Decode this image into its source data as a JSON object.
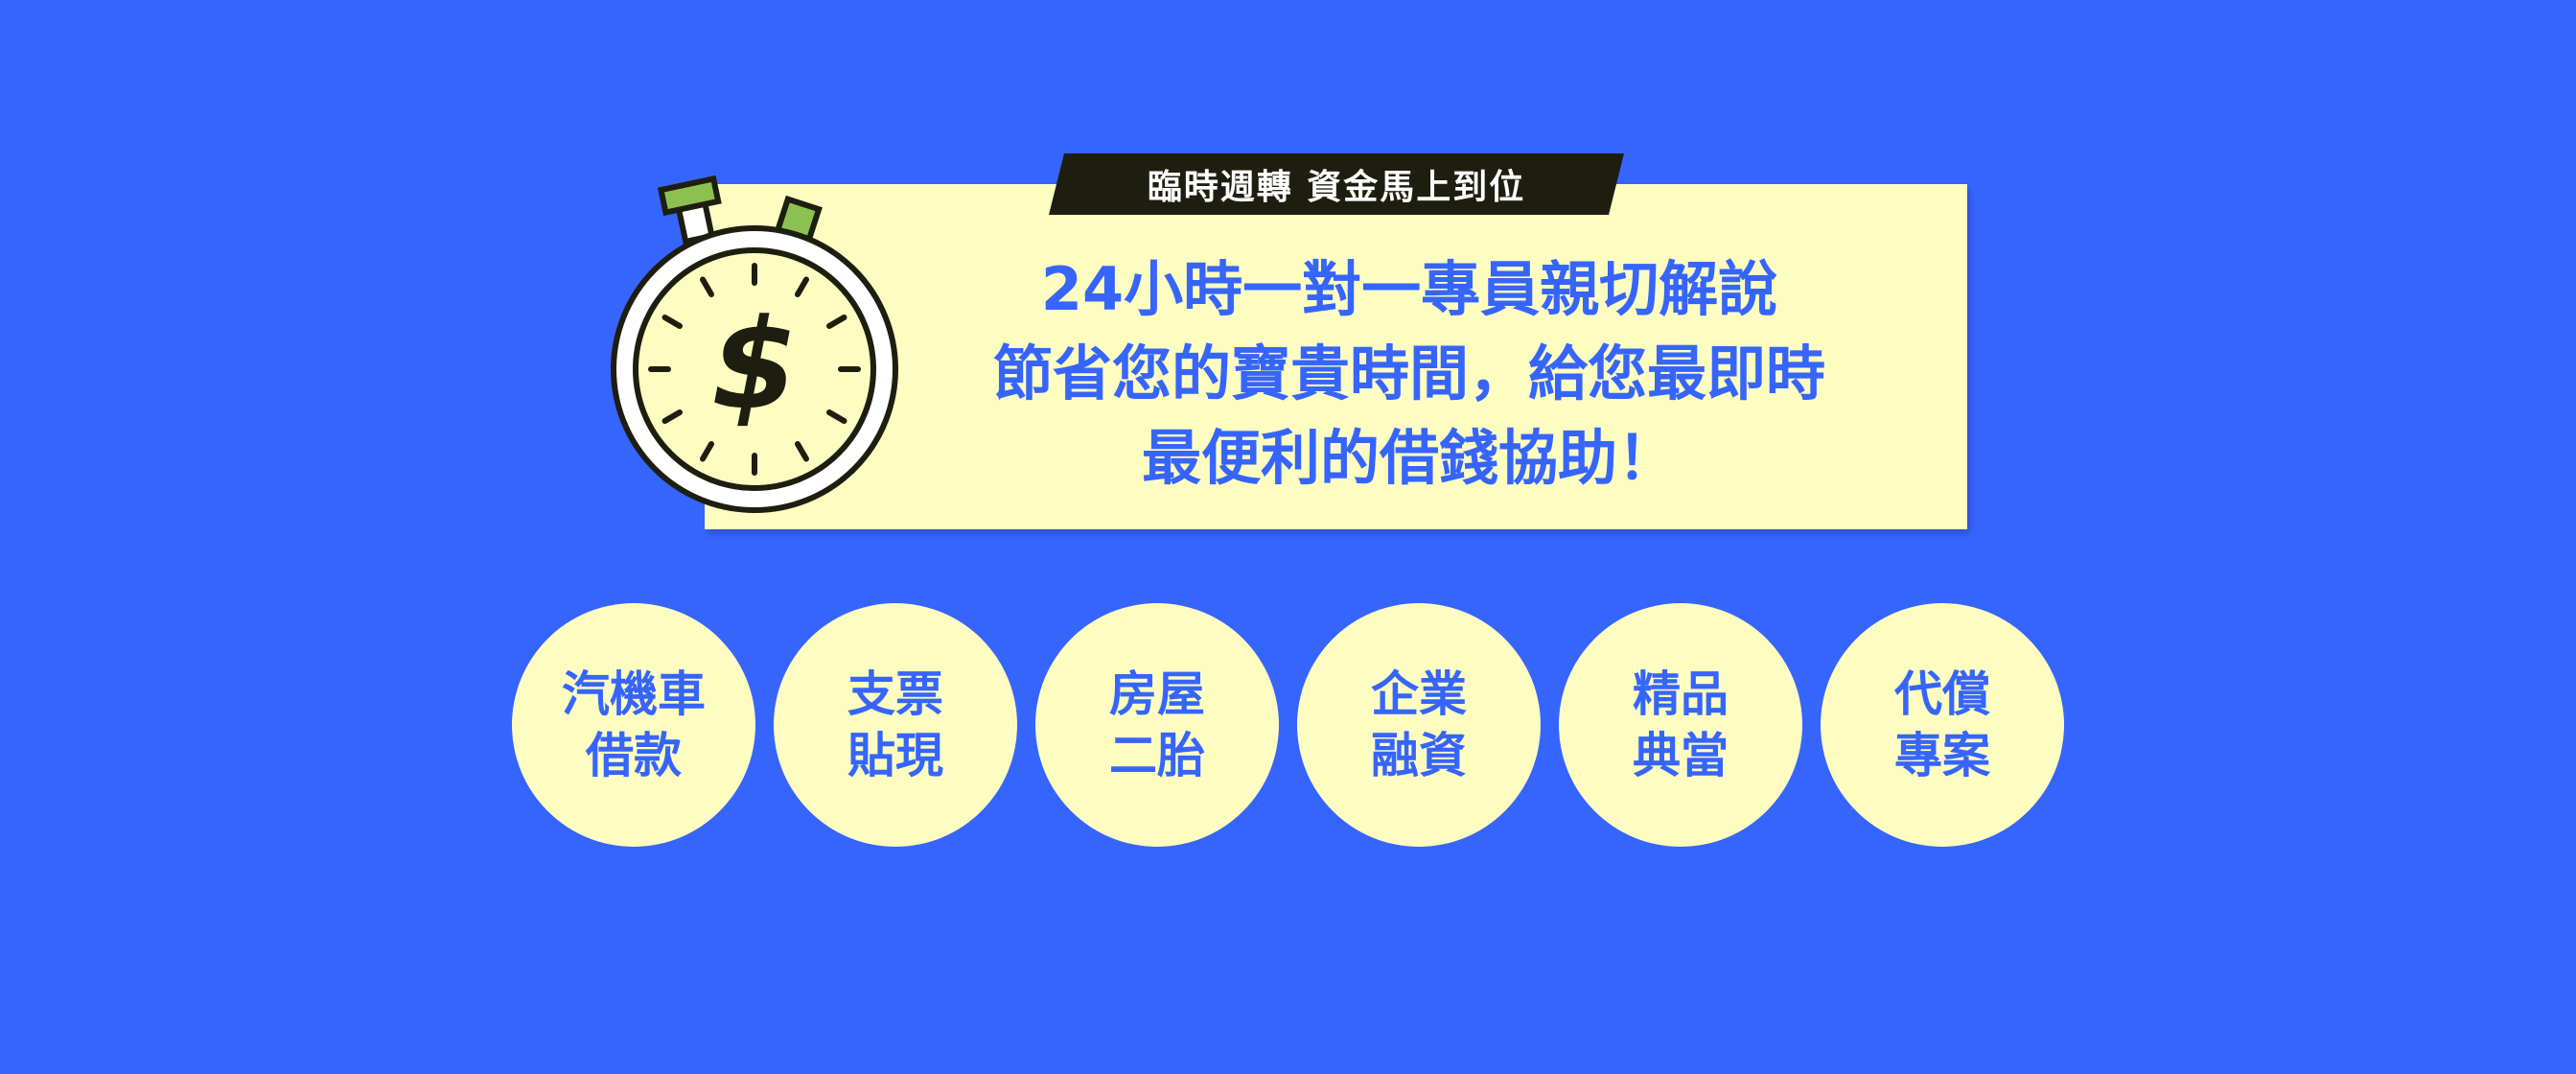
{
  "banner": {
    "tag": "臨時週轉 資金馬上到位",
    "headline": [
      "24小時一對一專員親切解說",
      "節省您的寶貴時間，給您最即時",
      "最便利的借錢協助！"
    ],
    "icon": "stopwatch-dollar-icon"
  },
  "services": [
    {
      "line1": "汽機車",
      "line2": "借款"
    },
    {
      "line1": "支票",
      "line2": "貼現"
    },
    {
      "line1": "房屋",
      "line2": "二胎"
    },
    {
      "line1": "企業",
      "line2": "融資"
    },
    {
      "line1": "精品",
      "line2": "典當"
    },
    {
      "line1": "代償",
      "line2": "專案"
    }
  ],
  "colors": {
    "background": "#3665FE",
    "card": "#FEFDC1",
    "tag_bg": "#1E1E10",
    "text_accent": "#3665FE",
    "stopwatch_face": "#FEFDC1",
    "stopwatch_buttons": "#8CC151",
    "stopwatch_outline": "#1E1E10"
  }
}
